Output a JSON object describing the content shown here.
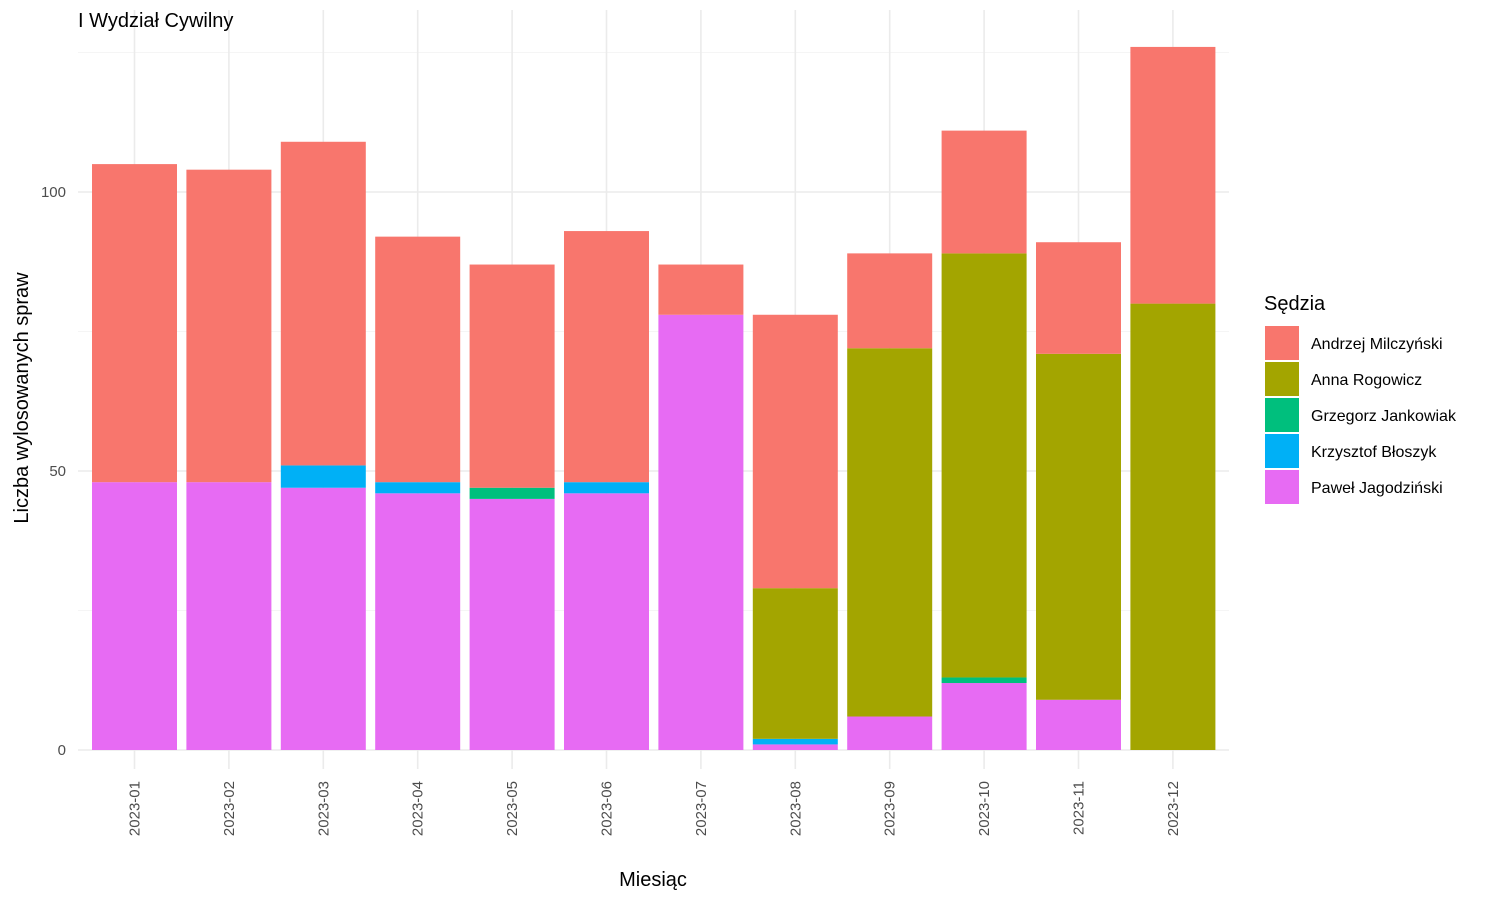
{
  "chart_data": {
    "type": "bar",
    "stacked": true,
    "title": "I Wydział Cywilny",
    "xlabel": "Miesiąc",
    "ylabel": "Liczba wylosowanych spraw",
    "ylim": [
      0,
      126
    ],
    "yticks": [
      0,
      50,
      100
    ],
    "grid": true,
    "legend_title": "Sędzia",
    "legend_position": "right",
    "categories": [
      "2023-01",
      "2023-02",
      "2023-03",
      "2023-04",
      "2023-05",
      "2023-06",
      "2023-07",
      "2023-08",
      "2023-09",
      "2023-10",
      "2023-11",
      "2023-12"
    ],
    "series": [
      {
        "name": "Paweł Jagodziński",
        "color": "#E76BF3",
        "values": [
          48,
          48,
          47,
          46,
          45,
          46,
          78,
          1,
          6,
          12,
          9,
          0
        ]
      },
      {
        "name": "Krzysztof Błoszyk",
        "color": "#00B0F6",
        "values": [
          0,
          0,
          4,
          2,
          0,
          2,
          0,
          1,
          0,
          0,
          0,
          0
        ]
      },
      {
        "name": "Grzegorz Jankowiak",
        "color": "#00BF7D",
        "values": [
          0,
          0,
          0,
          0,
          2,
          0,
          0,
          0,
          0,
          1,
          0,
          0
        ]
      },
      {
        "name": "Anna Rogowicz",
        "color": "#A3A500",
        "values": [
          0,
          0,
          0,
          0,
          0,
          0,
          0,
          27,
          66,
          76,
          62,
          80
        ]
      },
      {
        "name": "Andrzej Milczyński",
        "color": "#F8766D",
        "values": [
          57,
          56,
          58,
          44,
          40,
          45,
          9,
          49,
          17,
          22,
          20,
          46
        ]
      }
    ],
    "legend_order": [
      "Andrzej Milczyński",
      "Anna Rogowicz",
      "Grzegorz Jankowiak",
      "Krzysztof Błoszyk",
      "Paweł Jagodziński"
    ]
  }
}
